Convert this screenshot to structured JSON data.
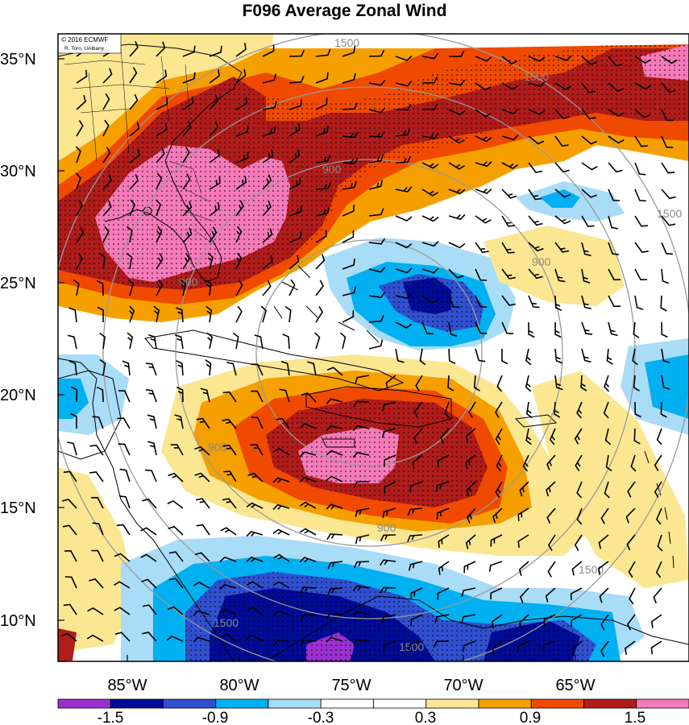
{
  "title": "F096 Average Zonal Wind",
  "credit": {
    "line1": "© 2016 ECMWF",
    "line2": "R. Torn, UAlbany"
  },
  "lat_labels": [
    "35°N",
    "30°N",
    "25°N",
    "20°N",
    "15°N",
    "10°N"
  ],
  "lon_labels": [
    "85°W",
    "80°W",
    "75°W",
    "70°W",
    "65°W"
  ],
  "ring_labels": [
    "900",
    "900",
    "900",
    "900",
    "900",
    "1500",
    "1500",
    "1500",
    "1500",
    "1500",
    "1500"
  ],
  "colorbar": {
    "colors": [
      "#9b30d0",
      "#000c96",
      "#3050d0",
      "#00b0f0",
      "#a9dcf7",
      "#ffffff",
      "#ffffff",
      "#fbe792",
      "#f5a000",
      "#f04a00",
      "#b01c1a",
      "#f57ab8"
    ],
    "labels": [
      "-1.5",
      "-0.9",
      "-0.3",
      "0.3",
      "0.9",
      "1.5"
    ]
  },
  "legend_colors": {
    "purple": "#9b30d0",
    "navy": "#000c96",
    "blue": "#3050d0",
    "cyan": "#00b0f0",
    "light_blue": "#a9dcf7",
    "yellow": "#fbe792",
    "orange": "#f5a000",
    "red_orange": "#f04a00",
    "dark_red": "#b01c1a",
    "pink": "#f57ab8"
  }
}
